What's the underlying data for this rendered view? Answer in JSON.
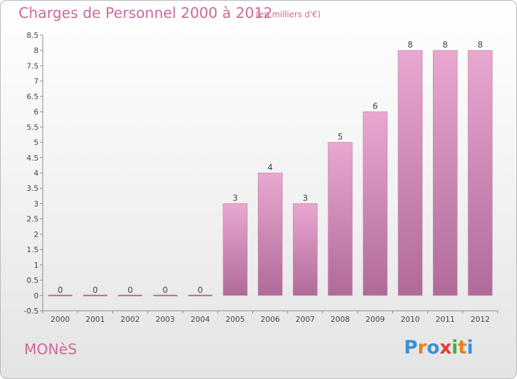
{
  "header": {
    "title": "Charges de Personnel 2000 à 2012",
    "subtitle": "(en milliers d'€)"
  },
  "footer": {
    "commune": "MONèS",
    "logo_letters": [
      "P",
      "r",
      "o",
      "x",
      "i",
      "t",
      "i"
    ],
    "logo_colors": [
      "#3d8fd6",
      "#e8821e",
      "#3d8fd6",
      "#e23a2f",
      "#4aa84a",
      "#e8821e",
      "#3d8fd6"
    ]
  },
  "colors": {
    "bar_light": "#e8a8d0",
    "bar_dark": "#b06a98",
    "title": "#d0689a"
  },
  "chart_data": {
    "type": "bar",
    "title": "Charges de Personnel 2000 à 2012",
    "subtitle": "(en milliers d'€)",
    "categories": [
      "2000",
      "2001",
      "2002",
      "2003",
      "2004",
      "2005",
      "2006",
      "2007",
      "2008",
      "2009",
      "2010",
      "2011",
      "2012"
    ],
    "values": [
      0,
      0,
      0,
      0,
      0,
      3,
      4,
      3,
      5,
      6,
      8,
      8,
      8
    ],
    "data_labels": [
      "0",
      "0",
      "0",
      "0",
      "0",
      "3",
      "4",
      "3",
      "5",
      "6",
      "8",
      "8",
      "8"
    ],
    "yticks": [
      "-0.5",
      "0",
      "0.5",
      "1",
      "1.5",
      "2",
      "2.5",
      "3",
      "3.5",
      "4",
      "4.5",
      "5",
      "5.5",
      "6",
      "6.5",
      "7",
      "7.5",
      "8",
      "8.5"
    ],
    "ylim": [
      -0.5,
      8.5
    ],
    "grid": false,
    "legend": "none"
  }
}
